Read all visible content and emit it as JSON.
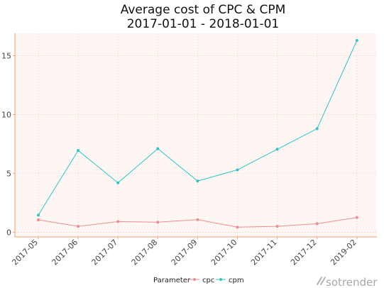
{
  "chart_data": {
    "type": "line",
    "title_line1": "Average cost of CPC & CPM",
    "title_line2": "2017-01-01 - 2018-01-01",
    "xlabel": "",
    "ylabel": "",
    "categories": [
      "2017-05",
      "2017-06",
      "2017-07",
      "2017-08",
      "2017-09",
      "2017-10",
      "2017-11",
      "2017-12",
      "2019-02"
    ],
    "series": [
      {
        "name": "cpc",
        "color": "#f08c8c",
        "values": [
          1.05,
          0.5,
          0.9,
          0.85,
          1.07,
          0.43,
          0.5,
          0.72,
          1.25
        ]
      },
      {
        "name": "cpm",
        "color": "#2ec4c9",
        "values": [
          1.45,
          6.95,
          4.2,
          7.1,
          4.35,
          5.3,
          7.05,
          8.8,
          16.3
        ]
      }
    ],
    "ylim": [
      -0.4,
      16.9
    ],
    "yticks": [
      0,
      5,
      10,
      15
    ],
    "grid": true,
    "legend": {
      "title": "Parameter",
      "placement": "bottom"
    }
  },
  "colors": {
    "panel_bg": "#fdf6f2",
    "grid": "#ead9d0",
    "axis": "#f0a070"
  },
  "brand": {
    "text": "sotrender",
    "icon": "sotrender-logo-icon"
  }
}
